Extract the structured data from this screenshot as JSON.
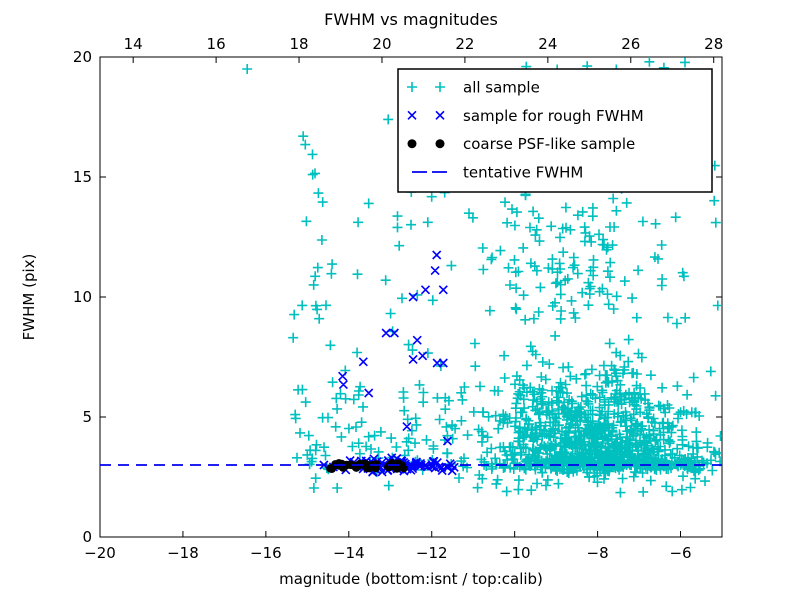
{
  "chart_data": {
    "type": "scatter",
    "title": "FWHM vs magnitudes",
    "xlabel": "magnitude (bottom:isnt / top:calib)",
    "ylabel": "FWHM (pix)",
    "grid": false,
    "x_axis_bottom": {
      "name": "isnt magnitude",
      "range": [
        -20,
        -5
      ],
      "tick_values": [
        -20,
        -18,
        -16,
        -14,
        -12,
        -10,
        -8,
        -6
      ],
      "tick_labels": [
        "−20",
        "−18",
        "−16",
        "−14",
        "−12",
        "−10",
        "−8",
        "−6"
      ]
    },
    "x_axis_top": {
      "name": "calib magnitude",
      "range": [
        13.2,
        28.2
      ],
      "tick_values": [
        14,
        16,
        18,
        20,
        22,
        24,
        26,
        28
      ],
      "tick_labels": [
        "14",
        "16",
        "18",
        "20",
        "22",
        "24",
        "26",
        "28"
      ]
    },
    "y_axis": {
      "range": [
        0,
        20
      ],
      "tick_values": [
        0,
        5,
        10,
        15,
        20
      ],
      "tick_labels": [
        "0",
        "5",
        "10",
        "15",
        "20"
      ]
    },
    "tentative_fwhm_value": 3.0,
    "seed": 7,
    "series": [
      {
        "name": "all sample",
        "marker": "plus",
        "color": "#00bfbf",
        "points": [
          [
            -16.45,
            19.5
          ],
          [
            -13.05,
            17.4
          ],
          [
            -15.1,
            16.7
          ],
          [
            -15.05,
            16.35
          ],
          [
            -14.87,
            15.1
          ],
          [
            -13.52,
            13.9
          ],
          [
            -9.72,
            19.6
          ],
          [
            -8.25,
            19.62
          ],
          [
            -6.75,
            19.8
          ],
          [
            -6.4,
            19.55
          ],
          [
            -15.25,
            3.3
          ],
          [
            -15.0,
            3.42
          ],
          [
            -9.6,
            1.95
          ],
          [
            -7.45,
            1.85
          ],
          [
            -6.9,
            1.88
          ],
          [
            -6.2,
            1.9
          ],
          [
            -5.15,
            13.1
          ],
          [
            -5.27,
            6.9
          ]
        ],
        "clusters": [
          {
            "n": 72,
            "mag": {
              "d": "u",
              "lo": -15.35,
              "hi": -12.45
            },
            "fwhm": {
              "d": "g",
              "c": 4.6,
              "s": 2.0,
              "lo": 2.0,
              "hi": 9.3
            }
          },
          {
            "n": 10,
            "mag": {
              "d": "u",
              "lo": -15.1,
              "hi": -12.6
            },
            "fwhm": {
              "d": "u",
              "lo": 9.3,
              "hi": 13.5
            }
          },
          {
            "n": 14,
            "mag": {
              "d": "g",
              "c": -14.8,
              "s": 0.2,
              "lo": -15.15,
              "hi": -14.35
            },
            "fwhm": {
              "d": "u",
              "lo": 8.8,
              "hi": 16.8
            }
          },
          {
            "n": 40,
            "mag": {
              "d": "u",
              "lo": -12.45,
              "hi": -10.95
            },
            "fwhm": {
              "d": "g",
              "c": 4.8,
              "s": 2.2,
              "lo": 2.4,
              "hi": 9.3
            }
          },
          {
            "n": 8,
            "mag": {
              "d": "u",
              "lo": -12.5,
              "hi": -10.9
            },
            "fwhm": {
              "d": "u",
              "lo": 9.3,
              "hi": 14.5
            }
          },
          {
            "n": 620,
            "mag": {
              "d": "g",
              "c": -8.25,
              "s": 1.2,
              "lo": -10.9,
              "hi": -5.03
            },
            "fwhm": {
              "d": "g",
              "c": 4.5,
              "s": 1.3,
              "lo": 2.65,
              "hi": 9.0
            }
          },
          {
            "n": 210,
            "mag": {
              "d": "g",
              "c": -7.5,
              "s": 1.4,
              "lo": -10.3,
              "hi": -5.03
            },
            "fwhm": {
              "d": "g",
              "c": 3.5,
              "s": 0.55,
              "lo": 2.7,
              "hi": 5.2
            }
          },
          {
            "n": 120,
            "mag": {
              "d": "g",
              "c": -8.7,
              "s": 1.35,
              "lo": -11.35,
              "hi": -5.03
            },
            "fwhm": {
              "d": "u",
              "lo": 9.0,
              "hi": 13.8
            }
          },
          {
            "n": 42,
            "mag": {
              "d": "u",
              "lo": -10.9,
              "hi": -5.1
            },
            "fwhm": {
              "d": "u",
              "lo": 13.8,
              "hi": 17.6
            }
          },
          {
            "n": 10,
            "mag": {
              "d": "u",
              "lo": -10.3,
              "hi": -5.15
            },
            "fwhm": {
              "d": "u",
              "lo": 17.6,
              "hi": 19.85
            }
          },
          {
            "n": 230,
            "mag": {
              "d": "g",
              "c": -7.7,
              "s": 1.7,
              "lo": -11.42,
              "hi": -5.02
            },
            "fwhm": {
              "d": "g",
              "c": 3.05,
              "s": 0.12,
              "lo": 2.75,
              "hi": 3.4
            }
          },
          {
            "n": 30,
            "mag": {
              "d": "u",
              "lo": -10.9,
              "hi": -5.05
            },
            "fwhm": {
              "d": "g",
              "c": 2.4,
              "s": 0.28,
              "lo": 1.78,
              "hi": 2.72
            }
          }
        ]
      },
      {
        "name": "sample for rough FWHM",
        "marker": "x",
        "color": "#0000ff",
        "points": [
          [
            -11.88,
            11.75
          ],
          [
            -11.92,
            11.1
          ],
          [
            -12.45,
            10.0
          ],
          [
            -12.15,
            10.3
          ],
          [
            -11.72,
            10.3
          ],
          [
            -13.1,
            8.5
          ],
          [
            -12.9,
            8.5
          ],
          [
            -13.65,
            7.3
          ],
          [
            -14.15,
            6.7
          ],
          [
            -12.45,
            7.4
          ],
          [
            -12.22,
            7.55
          ],
          [
            -11.87,
            7.25
          ],
          [
            -11.72,
            7.25
          ],
          [
            -12.35,
            8.2
          ],
          [
            -14.13,
            6.35
          ],
          [
            -13.52,
            6.0
          ],
          [
            -12.6,
            4.6
          ],
          [
            -11.62,
            4.0
          ],
          [
            -14.6,
            3.0
          ]
        ],
        "clusters": [
          {
            "n": 88,
            "mag": {
              "d": "g",
              "c": -12.85,
              "s": 0.9,
              "lo": -14.38,
              "hi": -11.45
            },
            "fwhm": {
              "d": "g",
              "c": 3.0,
              "s": 0.13,
              "lo": 2.7,
              "hi": 3.35
            }
          }
        ]
      },
      {
        "name": "coarse PSF-like sample",
        "marker": "dot",
        "color": "#000000",
        "points": [],
        "clusters": [
          {
            "n": 42,
            "mag": {
              "d": "u",
              "lo": -14.45,
              "hi": -12.65
            },
            "fwhm": {
              "d": "g",
              "c": 2.97,
              "s": 0.07,
              "lo": 2.82,
              "hi": 3.12
            }
          }
        ]
      },
      {
        "name": "tentative FWHM",
        "marker": "dash",
        "type": "hline",
        "color": "#0000ee",
        "y": 3.0
      }
    ]
  },
  "legend": {
    "entries": [
      {
        "label": "all sample"
      },
      {
        "label": "sample for rough FWHM"
      },
      {
        "label": "coarse PSF-like sample"
      },
      {
        "label": "tentative FWHM"
      }
    ]
  }
}
